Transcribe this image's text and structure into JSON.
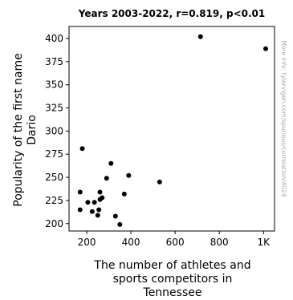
{
  "chart_data": {
    "type": "scatter",
    "title": "Years 2003-2022, r=0.819, p<0.01",
    "xlabel": [
      "The number of athletes and",
      "sports competitors in",
      "Tennessee"
    ],
    "ylabel": [
      "Popularity of the first name",
      "Dario"
    ],
    "side_note": "More info: tylervigen.com/spurious/correlation/4024",
    "xlim": [
      120,
      1050
    ],
    "ylim": [
      192,
      413
    ],
    "x_ticks": [
      {
        "value": 200,
        "label": "200"
      },
      {
        "value": 400,
        "label": "400"
      },
      {
        "value": 600,
        "label": "600"
      },
      {
        "value": 800,
        "label": "800"
      },
      {
        "value": 1000,
        "label": "1K"
      }
    ],
    "y_ticks": [
      {
        "value": 200,
        "label": "200"
      },
      {
        "value": 225,
        "label": "225"
      },
      {
        "value": 250,
        "label": "250"
      },
      {
        "value": 275,
        "label": "275"
      },
      {
        "value": 300,
        "label": "300"
      },
      {
        "value": 325,
        "label": "325"
      },
      {
        "value": 350,
        "label": "350"
      },
      {
        "value": 375,
        "label": "375"
      },
      {
        "value": 400,
        "label": "400"
      }
    ],
    "points": [
      {
        "x": 180,
        "y": 281
      },
      {
        "x": 170,
        "y": 234
      },
      {
        "x": 170,
        "y": 215
      },
      {
        "x": 205,
        "y": 223
      },
      {
        "x": 225,
        "y": 213
      },
      {
        "x": 235,
        "y": 223
      },
      {
        "x": 250,
        "y": 209
      },
      {
        "x": 255,
        "y": 215
      },
      {
        "x": 260,
        "y": 226
      },
      {
        "x": 260,
        "y": 234
      },
      {
        "x": 270,
        "y": 228
      },
      {
        "x": 290,
        "y": 249
      },
      {
        "x": 310,
        "y": 265
      },
      {
        "x": 330,
        "y": 208
      },
      {
        "x": 350,
        "y": 199
      },
      {
        "x": 370,
        "y": 232
      },
      {
        "x": 390,
        "y": 252
      },
      {
        "x": 530,
        "y": 245
      },
      {
        "x": 715,
        "y": 402
      },
      {
        "x": 1010,
        "y": 389
      }
    ],
    "colors": {
      "point": "#000000",
      "axis": "#000000",
      "side_note": "#a9a9a9"
    },
    "grid": false,
    "legend": "none"
  }
}
